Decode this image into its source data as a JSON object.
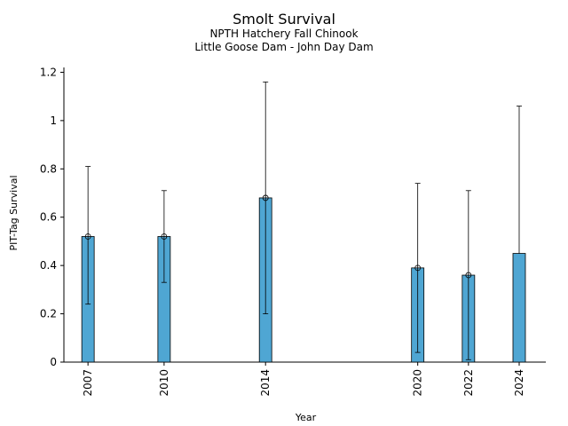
{
  "chart_data": {
    "type": "bar",
    "title": "Smolt Survival",
    "subtitles": [
      "NPTH Hatchery Fall Chinook",
      "Little Goose Dam - John Day Dam"
    ],
    "xlabel": "Year",
    "ylabel": "PIT-Tag Survival",
    "x": [
      2007,
      2010,
      2014,
      2020,
      2022,
      2024
    ],
    "categories": [
      "2007",
      "2010",
      "2014",
      "2020",
      "2022",
      "2024"
    ],
    "values": [
      0.52,
      0.52,
      0.68,
      0.39,
      0.36,
      0.45
    ],
    "error_low": [
      0.24,
      0.33,
      0.2,
      0.04,
      0.01,
      null
    ],
    "error_high": [
      0.81,
      0.71,
      1.16,
      0.74,
      0.71,
      1.06
    ],
    "markers": [
      true,
      true,
      true,
      true,
      true,
      false
    ],
    "ylim": [
      0,
      1.22
    ],
    "yticks": [
      0,
      0.2,
      0.4,
      0.6,
      0.8,
      1,
      1.2
    ],
    "ytick_labels": [
      "0",
      "0.2",
      "0.4",
      "0.6",
      "0.8",
      "1",
      "1.2"
    ],
    "grid": false,
    "bar_color": "#4fa6d3"
  }
}
